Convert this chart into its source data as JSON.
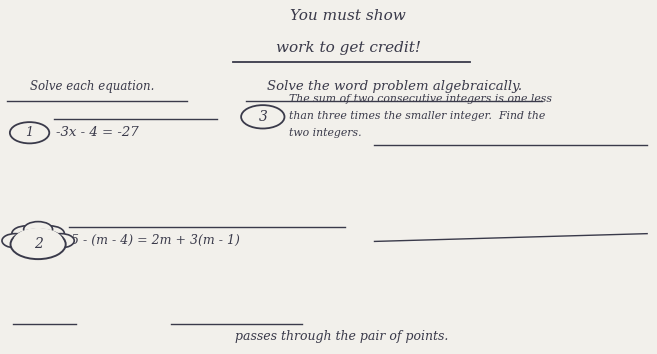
{
  "bg_color": "#c8b89a",
  "paper_color": "#f2f0eb",
  "title_line1": "You must show",
  "title_line2": "work to get credit!",
  "solve_heading": "Solve the word problem algebraically.",
  "left_heading": "Solve each equation.",
  "eq1_label": "1",
  "eq1_text": "-3x - 4 = -27",
  "eq2_label": "2",
  "eq2_text": "5 - (m - 4) = 2m + 3(m - 1)",
  "prob3_label": "3",
  "prob3_line1": "The sum of two consecutive integers is one less",
  "prob3_line2": "than three times the smaller integer.  Find the",
  "prob3_line3": "two integers.",
  "bottom_text": "passes through the pair of points.",
  "handwriting_color": "#3a3a4a"
}
